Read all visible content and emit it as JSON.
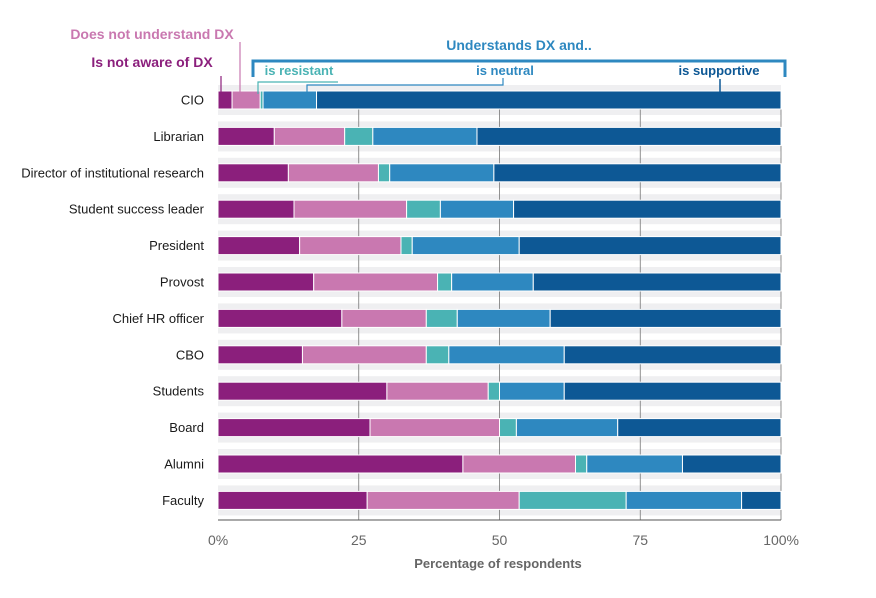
{
  "chart_data": {
    "type": "bar",
    "orientation": "horizontal",
    "stacked": true,
    "xlabel": "Percentage of respondents",
    "ylabel": "",
    "xlim": [
      0,
      100
    ],
    "xticks": [
      {
        "value": 0,
        "label": "0%"
      },
      {
        "value": 25,
        "label": "25"
      },
      {
        "value": 50,
        "label": "50"
      },
      {
        "value": 75,
        "label": "75"
      },
      {
        "value": 100,
        "label": "100%"
      }
    ],
    "grid": "vertical",
    "legend_title": "Understands DX and..",
    "categories": [
      "CIO",
      "Librarian",
      "Director of institutional research",
      "Student success leader",
      "President",
      "Provost",
      "Chief HR officer",
      "CBO",
      "Students",
      "Board",
      "Alumni",
      "Faculty"
    ],
    "series": [
      {
        "name": "Is not aware of DX",
        "color": "#8b1f7c",
        "values": [
          2.5,
          10,
          12.5,
          13.5,
          14.5,
          17,
          22,
          15,
          30,
          27,
          43.5,
          26.5
        ]
      },
      {
        "name": "Does not understand DX",
        "color": "#c978b0",
        "values": [
          5,
          12.5,
          16,
          20,
          18,
          22,
          15,
          22,
          18,
          23,
          20,
          27
        ]
      },
      {
        "name": "is resistant",
        "color": "#4ab3b4",
        "values": [
          0.5,
          5,
          2,
          6,
          2,
          2.5,
          5.5,
          4,
          2,
          3,
          2,
          19
        ]
      },
      {
        "name": "is neutral",
        "color": "#2e88c0",
        "values": [
          9.5,
          18.5,
          18.5,
          13,
          19,
          14.5,
          16.5,
          20.5,
          11.5,
          18,
          17,
          20.5
        ]
      },
      {
        "name": "is supportive",
        "color": "#0d5895",
        "values": [
          82.5,
          54,
          51,
          47.5,
          46.5,
          44,
          41,
          38.5,
          38.5,
          29,
          17.5,
          7
        ]
      }
    ]
  }
}
